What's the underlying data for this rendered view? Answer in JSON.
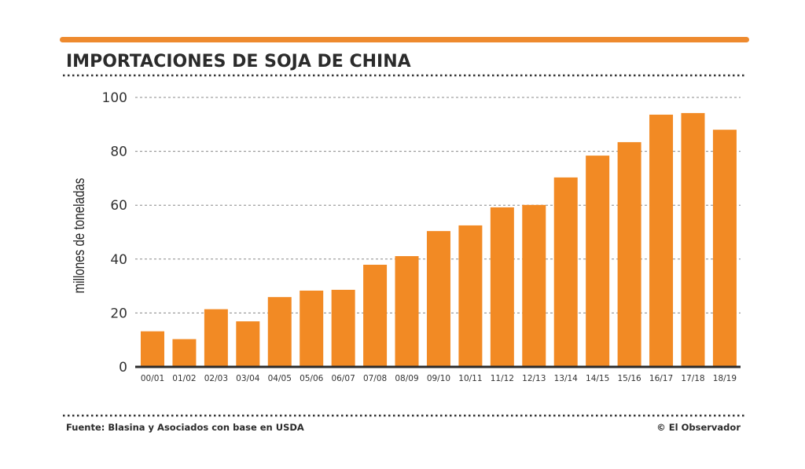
{
  "chart_data": {
    "type": "bar",
    "title": "IMPORTACIONES DE SOJA DE CHINA",
    "ylabel": "millones de toneladas",
    "xlabel": "",
    "ylim": [
      0,
      100
    ],
    "yticks": [
      0,
      20,
      40,
      60,
      80,
      100
    ],
    "grid": true,
    "categories": [
      "00/01",
      "01/02",
      "02/03",
      "03/04",
      "04/05",
      "05/06",
      "06/07",
      "07/08",
      "08/09",
      "09/10",
      "10/11",
      "11/12",
      "12/13",
      "13/14",
      "14/15",
      "15/16",
      "16/17",
      "17/18",
      "18/19"
    ],
    "values": [
      13.2,
      10.3,
      21.4,
      16.9,
      25.9,
      28.3,
      28.6,
      37.9,
      41.1,
      50.4,
      52.5,
      59.2,
      60.1,
      70.3,
      78.4,
      83.4,
      93.6,
      94.2,
      88.0
    ],
    "bar_color": "#f28a24",
    "accent_color": "#ee8a2e"
  },
  "footer": {
    "source": "Fuente: Blasina y Asociados con base en USDA",
    "credit": "© El Observador"
  }
}
